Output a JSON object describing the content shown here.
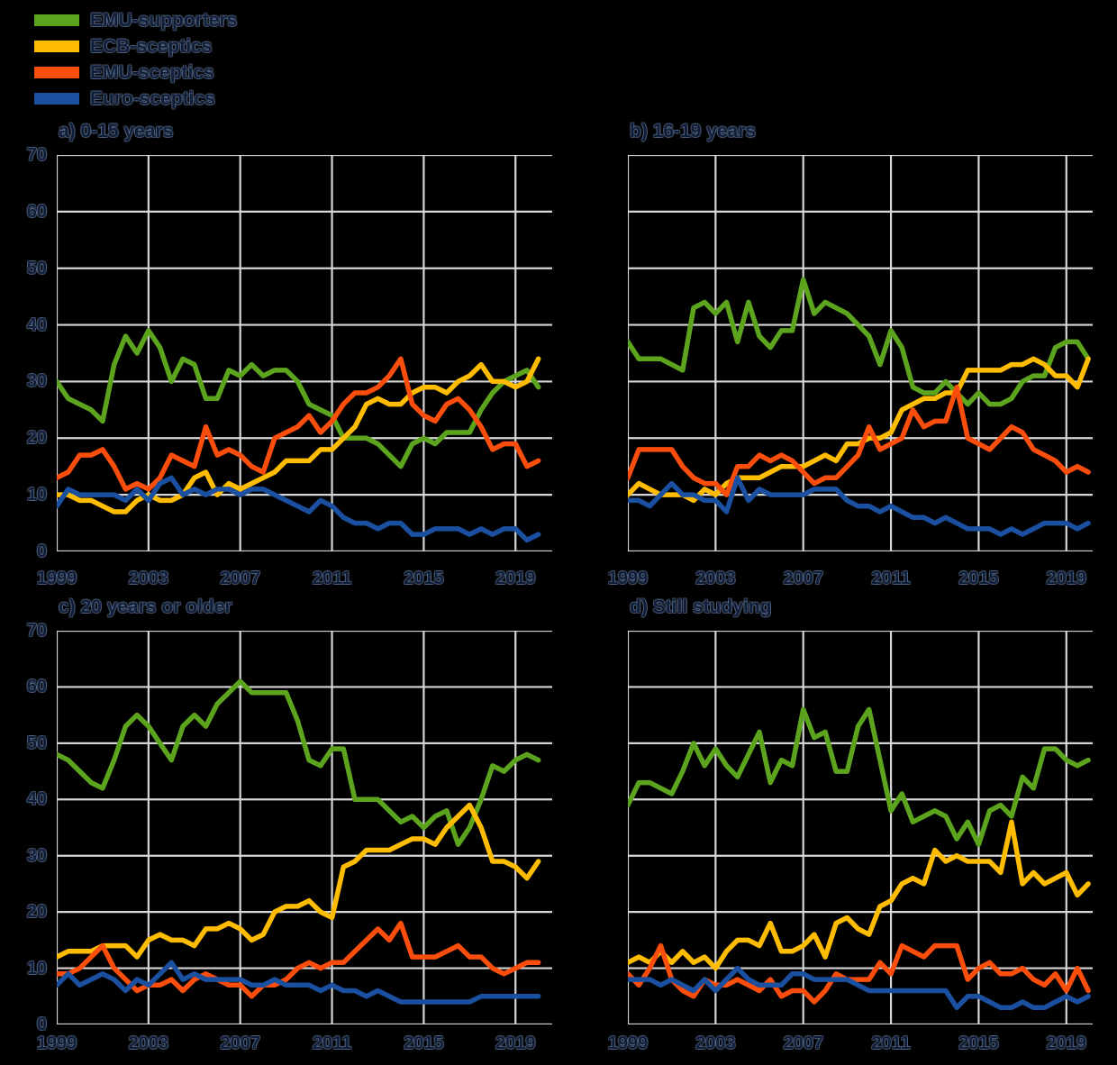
{
  "figure": {
    "background": "#000000",
    "gridline_color": "#D6D6D6",
    "label_color": "#101D36"
  },
  "legend": {
    "items": [
      {
        "label": "EMU-supporters",
        "series": "sup"
      },
      {
        "label": "ECB-sceptics",
        "series": "ecb"
      },
      {
        "label": "EMU-sceptics",
        "series": "emu"
      },
      {
        "label": "Euro-sceptics",
        "series": "eur"
      }
    ]
  },
  "series_colors": {
    "sup": "#5CA41E",
    "ecb": "#FFBC00",
    "emu": "#FB4E0C",
    "eur": "#1B4F9F"
  },
  "axes": {
    "y_ticks": [
      0,
      10,
      20,
      30,
      40,
      50,
      60,
      70
    ],
    "x_ticks": [
      1999,
      2003,
      2007,
      2011,
      2015,
      2019
    ],
    "y_max": 70,
    "x_min": 1999,
    "grid": true
  },
  "chart_data": [
    {
      "type": "line",
      "title": "a) 0-15 years",
      "y_labels_shown": true,
      "x_step_years": 0.5,
      "x_start": 1999,
      "series": [
        {
          "name": "EMU-supporters",
          "key": "sup",
          "values": [
            30,
            27,
            26,
            25,
            23,
            33,
            38,
            35,
            39,
            36,
            30,
            34,
            33,
            27,
            27,
            32,
            31,
            33,
            31,
            32,
            32,
            30,
            26,
            25,
            24,
            20,
            20,
            20,
            19,
            17,
            15,
            19,
            20,
            19,
            21,
            21,
            21,
            25,
            28,
            30,
            31,
            32,
            29
          ]
        },
        {
          "name": "ECB-sceptics",
          "key": "ecb",
          "values": [
            10,
            10,
            9,
            9,
            8,
            7,
            7,
            9,
            10,
            9,
            9,
            10,
            13,
            14,
            10,
            12,
            11,
            12,
            13,
            14,
            16,
            16,
            16,
            18,
            18,
            20,
            22,
            26,
            27,
            26,
            26,
            28,
            29,
            29,
            28,
            30,
            31,
            33,
            30,
            30,
            29,
            30,
            34
          ]
        },
        {
          "name": "EMU-sceptics",
          "key": "emu",
          "values": [
            13,
            14,
            17,
            17,
            18,
            15,
            11,
            12,
            11,
            13,
            17,
            16,
            15,
            22,
            17,
            18,
            17,
            15,
            14,
            20,
            21,
            22,
            24,
            21,
            23,
            26,
            28,
            28,
            29,
            31,
            34,
            26,
            24,
            23,
            26,
            27,
            25,
            22,
            18,
            19,
            19,
            15,
            16
          ]
        },
        {
          "name": "Euro-sceptics",
          "key": "eur",
          "values": [
            8,
            11,
            10,
            10,
            10,
            10,
            9,
            11,
            9,
            12,
            13,
            10,
            11,
            10,
            11,
            11,
            10,
            11,
            11,
            10,
            9,
            8,
            7,
            9,
            8,
            6,
            5,
            5,
            4,
            5,
            5,
            3,
            3,
            4,
            4,
            4,
            3,
            4,
            3,
            4,
            4,
            2,
            3
          ]
        }
      ]
    },
    {
      "type": "line",
      "title": "b) 16-19  years",
      "y_labels_shown": false,
      "x_step_years": 0.5,
      "x_start": 1999,
      "series": [
        {
          "name": "EMU-supporters",
          "key": "sup",
          "values": [
            37,
            34,
            34,
            34,
            33,
            32,
            43,
            44,
            42,
            44,
            37,
            44,
            38,
            36,
            39,
            39,
            48,
            42,
            44,
            43,
            42,
            40,
            38,
            33,
            39,
            36,
            29,
            28,
            28,
            30,
            28,
            26,
            28,
            26,
            26,
            27,
            30,
            31,
            31,
            36,
            37,
            37,
            34
          ]
        },
        {
          "name": "ECB-sceptics",
          "key": "ecb",
          "values": [
            10,
            12,
            11,
            10,
            10,
            10,
            9,
            11,
            10,
            12,
            13,
            13,
            13,
            14,
            15,
            15,
            15,
            16,
            17,
            16,
            19,
            19,
            20,
            20,
            21,
            25,
            26,
            27,
            27,
            28,
            28,
            32,
            32,
            32,
            32,
            33,
            33,
            34,
            33,
            31,
            31,
            29,
            34
          ]
        },
        {
          "name": "EMU-sceptics",
          "key": "emu",
          "values": [
            13,
            18,
            18,
            18,
            18,
            15,
            13,
            12,
            12,
            10,
            15,
            15,
            17,
            16,
            17,
            16,
            14,
            12,
            13,
            13,
            15,
            17,
            22,
            18,
            19,
            20,
            25,
            22,
            23,
            23,
            29,
            20,
            19,
            18,
            20,
            22,
            21,
            18,
            17,
            16,
            14,
            15,
            14
          ]
        },
        {
          "name": "Euro-sceptics",
          "key": "eur",
          "values": [
            9,
            9,
            8,
            10,
            12,
            10,
            10,
            9,
            9,
            7,
            13,
            9,
            11,
            10,
            10,
            10,
            10,
            11,
            11,
            11,
            9,
            8,
            8,
            7,
            8,
            7,
            6,
            6,
            5,
            6,
            5,
            4,
            4,
            4,
            3,
            4,
            3,
            4,
            5,
            5,
            5,
            4,
            5
          ]
        }
      ]
    },
    {
      "type": "line",
      "title": "c) 20 years or older",
      "y_labels_shown": true,
      "x_step_years": 0.5,
      "x_start": 1999,
      "series": [
        {
          "name": "EMU-supporters",
          "key": "sup",
          "values": [
            48,
            47,
            45,
            43,
            42,
            47,
            53,
            55,
            53,
            50,
            47,
            53,
            55,
            53,
            57,
            59,
            61,
            59,
            59,
            59,
            59,
            54,
            47,
            46,
            49,
            49,
            40,
            40,
            40,
            38,
            36,
            37,
            35,
            37,
            38,
            32,
            35,
            40,
            46,
            45,
            47,
            48,
            47
          ]
        },
        {
          "name": "ECB-sceptics",
          "key": "ecb",
          "values": [
            12,
            13,
            13,
            13,
            14,
            14,
            14,
            12,
            15,
            16,
            15,
            15,
            14,
            17,
            17,
            18,
            17,
            15,
            16,
            20,
            21,
            21,
            22,
            20,
            19,
            28,
            29,
            31,
            31,
            31,
            32,
            33,
            33,
            32,
            35,
            37,
            39,
            35,
            29,
            29,
            28,
            26,
            29
          ]
        },
        {
          "name": "EMU-sceptics",
          "key": "emu",
          "values": [
            9,
            9,
            10,
            12,
            14,
            10,
            8,
            6,
            7,
            7,
            8,
            6,
            8,
            9,
            8,
            7,
            7,
            5,
            7,
            7,
            8,
            10,
            11,
            10,
            11,
            11,
            13,
            15,
            17,
            15,
            18,
            12,
            12,
            12,
            13,
            14,
            12,
            12,
            10,
            9,
            10,
            11,
            11
          ]
        },
        {
          "name": "Euro-sceptics",
          "key": "eur",
          "values": [
            7,
            9,
            7,
            8,
            9,
            8,
            6,
            8,
            7,
            9,
            11,
            8,
            9,
            8,
            8,
            8,
            8,
            7,
            7,
            8,
            7,
            7,
            7,
            6,
            7,
            6,
            6,
            5,
            6,
            5,
            4,
            4,
            4,
            4,
            4,
            4,
            4,
            5,
            5,
            5,
            5,
            5,
            5
          ]
        }
      ]
    },
    {
      "type": "line",
      "title": "d) Still studying",
      "y_labels_shown": false,
      "x_step_years": 0.5,
      "x_start": 1999,
      "series": [
        {
          "name": "EMU-supporters",
          "key": "sup",
          "values": [
            39,
            43,
            43,
            42,
            41,
            45,
            50,
            46,
            49,
            46,
            44,
            48,
            52,
            43,
            47,
            46,
            56,
            51,
            52,
            45,
            45,
            53,
            56,
            47,
            38,
            41,
            36,
            37,
            38,
            37,
            33,
            36,
            32,
            38,
            39,
            37,
            44,
            42,
            49,
            49,
            47,
            46,
            47
          ]
        },
        {
          "name": "ECB-sceptics",
          "key": "ecb",
          "values": [
            11,
            12,
            11,
            13,
            11,
            13,
            11,
            12,
            10,
            13,
            15,
            15,
            14,
            18,
            13,
            13,
            14,
            16,
            12,
            18,
            19,
            17,
            16,
            21,
            22,
            25,
            26,
            25,
            31,
            29,
            30,
            29,
            29,
            29,
            27,
            36,
            25,
            27,
            25,
            26,
            27,
            23,
            25
          ]
        },
        {
          "name": "EMU-sceptics",
          "key": "emu",
          "values": [
            9,
            7,
            10,
            14,
            8,
            6,
            5,
            8,
            7,
            7,
            8,
            7,
            6,
            8,
            5,
            6,
            6,
            4,
            6,
            9,
            8,
            8,
            8,
            11,
            9,
            14,
            13,
            12,
            14,
            14,
            14,
            8,
            10,
            11,
            9,
            9,
            10,
            8,
            7,
            9,
            6,
            10,
            6
          ]
        },
        {
          "name": "Euro-sceptics",
          "key": "eur",
          "values": [
            8,
            8,
            8,
            7,
            8,
            7,
            6,
            8,
            6,
            8,
            10,
            8,
            7,
            7,
            7,
            9,
            9,
            8,
            8,
            8,
            8,
            7,
            6,
            6,
            6,
            6,
            6,
            6,
            6,
            6,
            3,
            5,
            5,
            4,
            3,
            3,
            4,
            3,
            3,
            4,
            5,
            4,
            5
          ]
        }
      ]
    }
  ]
}
